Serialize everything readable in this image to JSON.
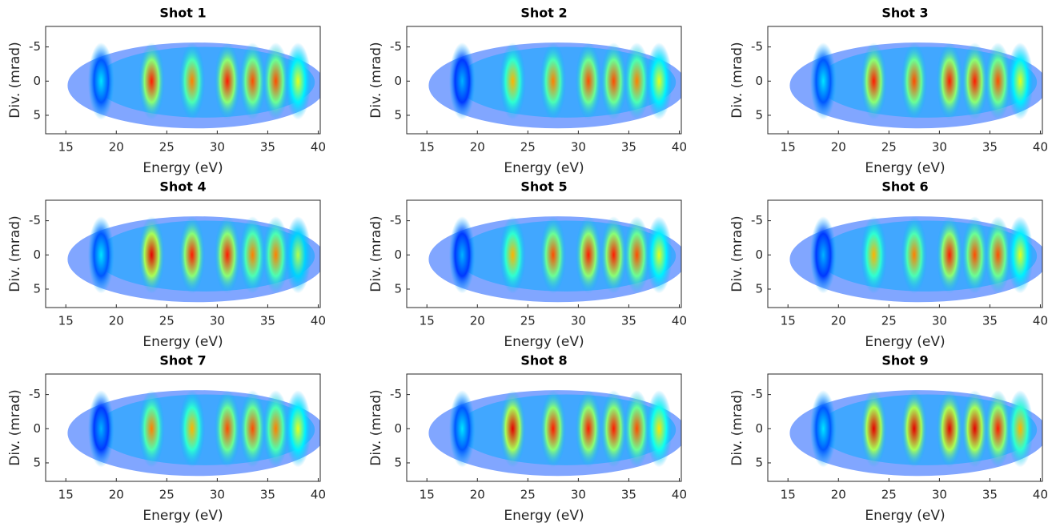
{
  "chart_data": [
    {
      "type": "heatmap",
      "title": "Shot 1",
      "xlabel": "Energy (eV)",
      "ylabel": "Div. (mrad)",
      "xlim": [
        13,
        40.2
      ],
      "ylim": [
        -8,
        7.7
      ],
      "y_reversed": true,
      "xticks": [
        15,
        20,
        25,
        30,
        35,
        40
      ],
      "yticks": [
        -5,
        0,
        5
      ],
      "x": [
        18.5,
        23.5,
        27.5,
        31,
        33.5,
        35.8,
        38
      ],
      "values": [
        0.35,
        0.85,
        0.75,
        0.85,
        0.8,
        0.8,
        0.6
      ]
    },
    {
      "type": "heatmap",
      "title": "Shot 2",
      "xlabel": "Energy (eV)",
      "ylabel": "Div. (mrad)",
      "xlim": [
        13,
        40.2
      ],
      "ylim": [
        -8,
        7.7
      ],
      "y_reversed": true,
      "xticks": [
        15,
        20,
        25,
        30,
        35,
        40
      ],
      "yticks": [
        -5,
        0,
        5
      ],
      "x": [
        18.5,
        23.5,
        27.5,
        31,
        33.5,
        35.8,
        38
      ],
      "values": [
        0.3,
        0.7,
        0.75,
        0.8,
        0.8,
        0.75,
        0.6
      ]
    },
    {
      "type": "heatmap",
      "title": "Shot 3",
      "xlabel": "Energy (eV)",
      "ylabel": "Div. (mrad)",
      "xlim": [
        13,
        40.2
      ],
      "ylim": [
        -8,
        7.7
      ],
      "y_reversed": true,
      "xticks": [
        15,
        20,
        25,
        30,
        35,
        40
      ],
      "yticks": [
        -5,
        0,
        5
      ],
      "x": [
        18.5,
        23.5,
        27.5,
        31,
        33.5,
        35.8,
        38
      ],
      "values": [
        0.35,
        0.85,
        0.8,
        0.85,
        0.85,
        0.8,
        0.6
      ]
    },
    {
      "type": "heatmap",
      "title": "Shot 4",
      "xlabel": "Energy (eV)",
      "ylabel": "Div. (mrad)",
      "xlim": [
        13,
        40.2
      ],
      "ylim": [
        -8,
        7.7
      ],
      "y_reversed": true,
      "xticks": [
        15,
        20,
        25,
        30,
        35,
        40
      ],
      "yticks": [
        -5,
        0,
        5
      ],
      "x": [
        18.5,
        23.5,
        27.5,
        31,
        33.5,
        35.8,
        38
      ],
      "values": [
        0.35,
        0.9,
        0.85,
        0.85,
        0.75,
        0.75,
        0.55
      ]
    },
    {
      "type": "heatmap",
      "title": "Shot 5",
      "xlabel": "Energy (eV)",
      "ylabel": "Div. (mrad)",
      "xlim": [
        13,
        40.2
      ],
      "ylim": [
        -8,
        7.7
      ],
      "y_reversed": true,
      "xticks": [
        15,
        20,
        25,
        30,
        35,
        40
      ],
      "yticks": [
        -5,
        0,
        5
      ],
      "x": [
        18.5,
        23.5,
        27.5,
        31,
        33.5,
        35.8,
        38
      ],
      "values": [
        0.3,
        0.7,
        0.8,
        0.85,
        0.85,
        0.8,
        0.6
      ]
    },
    {
      "type": "heatmap",
      "title": "Shot 6",
      "xlabel": "Energy (eV)",
      "ylabel": "Div. (mrad)",
      "xlim": [
        13,
        40.2
      ],
      "ylim": [
        -8,
        7.7
      ],
      "y_reversed": true,
      "xticks": [
        15,
        20,
        25,
        30,
        35,
        40
      ],
      "yticks": [
        -5,
        0,
        5
      ],
      "x": [
        18.5,
        23.5,
        27.5,
        31,
        33.5,
        35.8,
        38
      ],
      "values": [
        0.3,
        0.7,
        0.75,
        0.85,
        0.8,
        0.8,
        0.6
      ]
    },
    {
      "type": "heatmap",
      "title": "Shot 7",
      "xlabel": "Energy (eV)",
      "ylabel": "Div. (mrad)",
      "xlim": [
        13,
        40.2
      ],
      "ylim": [
        -8,
        7.7
      ],
      "y_reversed": true,
      "xticks": [
        15,
        20,
        25,
        30,
        35,
        40
      ],
      "yticks": [
        -5,
        0,
        5
      ],
      "x": [
        18.5,
        23.5,
        27.5,
        31,
        33.5,
        35.8,
        38
      ],
      "values": [
        0.3,
        0.75,
        0.7,
        0.8,
        0.8,
        0.75,
        0.6
      ]
    },
    {
      "type": "heatmap",
      "title": "Shot 8",
      "xlabel": "Energy (eV)",
      "ylabel": "Div. (mrad)",
      "xlim": [
        13,
        40.2
      ],
      "ylim": [
        -8,
        7.7
      ],
      "y_reversed": true,
      "xticks": [
        15,
        20,
        25,
        30,
        35,
        40
      ],
      "yticks": [
        -5,
        0,
        5
      ],
      "x": [
        18.5,
        23.5,
        27.5,
        31,
        33.5,
        35.8,
        38
      ],
      "values": [
        0.35,
        0.9,
        0.85,
        0.85,
        0.85,
        0.8,
        0.65
      ]
    },
    {
      "type": "heatmap",
      "title": "Shot 9",
      "xlabel": "Energy (eV)",
      "ylabel": "Div. (mrad)",
      "xlim": [
        13,
        40.2
      ],
      "ylim": [
        -8,
        7.7
      ],
      "y_reversed": true,
      "xticks": [
        15,
        20,
        25,
        30,
        35,
        40
      ],
      "yticks": [
        -5,
        0,
        5
      ],
      "x": [
        18.5,
        23.5,
        27.5,
        31,
        33.5,
        35.8,
        38
      ],
      "values": [
        0.35,
        0.9,
        0.9,
        0.9,
        0.9,
        0.85,
        0.7
      ]
    }
  ]
}
